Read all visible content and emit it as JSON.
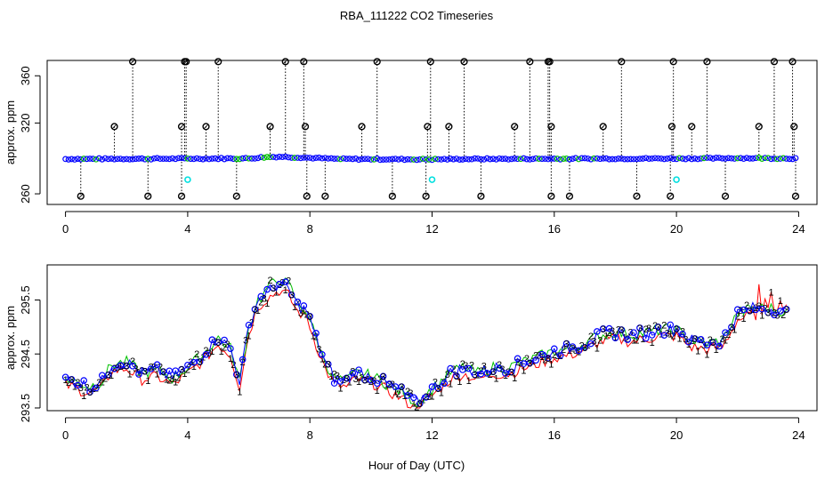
{
  "title": "RBA_111222  CO2 Timeseries",
  "xlabel": "Hour of Day (UTC)",
  "colors": {
    "black": "#000000",
    "blue": "#0000ff",
    "green": "#00c000",
    "red": "#ff0000",
    "cyan": "#00e0e0"
  },
  "chart_data": [
    {
      "type": "scatter",
      "ylabel": "approx. ppm",
      "xlim": [
        -0.6,
        24.6
      ],
      "ylim": [
        251,
        373
      ],
      "xticks": [
        0,
        4,
        8,
        12,
        16,
        20,
        24
      ],
      "yticks": [
        260,
        320,
        360
      ],
      "xticklabels": [
        "0",
        "4",
        "8",
        "12",
        "16",
        "20",
        "24"
      ],
      "yticklabels": [
        "260",
        "320",
        "360"
      ],
      "baseline": [
        [
          0,
          289.5
        ],
        [
          6,
          290
        ],
        [
          6.5,
          291
        ],
        [
          7,
          291.5
        ],
        [
          8,
          290.5
        ],
        [
          9,
          289.5
        ],
        [
          12,
          289.2
        ],
        [
          13,
          289.5
        ],
        [
          17,
          289.8
        ],
        [
          21,
          290
        ],
        [
          22,
          290.3
        ],
        [
          24,
          290
        ]
      ],
      "spikes_high": [
        2.2,
        3.9,
        3.95,
        5.0,
        7.2,
        7.8,
        10.2,
        11.95,
        13.05,
        15.2,
        15.8,
        15.85,
        18.2,
        19.9,
        21.0,
        23.2,
        23.8
      ],
      "spikes_mid": [
        1.6,
        3.8,
        4.6,
        6.7,
        7.85,
        9.7,
        11.85,
        12.55,
        14.7,
        15.9,
        17.6,
        19.85,
        20.5,
        22.7,
        23.85
      ],
      "spikes_low": [
        0.5,
        2.7,
        3.8,
        5.6,
        7.9,
        8.5,
        10.7,
        11.8,
        13.6,
        15.9,
        16.5,
        18.7,
        19.8,
        21.6,
        23.9
      ],
      "cyan_points": [
        [
          4.0,
          272
        ],
        [
          12.0,
          272
        ],
        [
          20.0,
          272
        ]
      ],
      "high_value": 372,
      "mid_value": 317,
      "low_value": 258
    },
    {
      "type": "line",
      "ylabel": "approx. ppm",
      "xlim": [
        -0.6,
        24.6
      ],
      "ylim": [
        293.45,
        296.15
      ],
      "xticks": [
        0,
        4,
        8,
        12,
        16,
        20,
        24
      ],
      "yticks": [
        293.5,
        294.5,
        295.5
      ],
      "xticklabels": [
        "0",
        "4",
        "8",
        "12",
        "16",
        "20",
        "24"
      ],
      "yticklabels": [
        "293.5",
        "294.5",
        "295.5"
      ],
      "trend": [
        [
          0,
          294.05
        ],
        [
          0.5,
          293.95
        ],
        [
          0.8,
          293.9
        ],
        [
          1.2,
          294.0
        ],
        [
          1.5,
          294.3
        ],
        [
          2.0,
          294.35
        ],
        [
          2.5,
          294.15
        ],
        [
          3.0,
          294.2
        ],
        [
          3.5,
          294.05
        ],
        [
          4.0,
          294.25
        ],
        [
          4.5,
          294.5
        ],
        [
          5.0,
          294.8
        ],
        [
          5.4,
          294.6
        ],
        [
          5.7,
          294.0
        ],
        [
          6.0,
          295.0
        ],
        [
          6.3,
          295.5
        ],
        [
          6.6,
          295.65
        ],
        [
          7.0,
          295.8
        ],
        [
          7.3,
          295.7
        ],
        [
          7.6,
          295.4
        ],
        [
          7.9,
          295.3
        ],
        [
          8.2,
          294.8
        ],
        [
          8.5,
          294.35
        ],
        [
          8.8,
          294.05
        ],
        [
          9.2,
          294.0
        ],
        [
          9.5,
          294.15
        ],
        [
          10.0,
          294.1
        ],
        [
          10.5,
          293.95
        ],
        [
          11.0,
          293.8
        ],
        [
          11.5,
          293.6
        ],
        [
          11.8,
          293.75
        ],
        [
          12.2,
          293.95
        ],
        [
          12.6,
          294.15
        ],
        [
          13.0,
          294.25
        ],
        [
          13.5,
          294.15
        ],
        [
          14.0,
          294.25
        ],
        [
          14.5,
          294.25
        ],
        [
          15.0,
          294.35
        ],
        [
          15.5,
          294.45
        ],
        [
          16.0,
          294.55
        ],
        [
          16.5,
          294.6
        ],
        [
          17.0,
          294.7
        ],
        [
          17.5,
          294.85
        ],
        [
          18.0,
          294.9
        ],
        [
          18.5,
          294.85
        ],
        [
          19.0,
          294.9
        ],
        [
          19.5,
          294.95
        ],
        [
          20.0,
          294.95
        ],
        [
          20.5,
          294.75
        ],
        [
          21.0,
          294.7
        ],
        [
          21.5,
          294.75
        ],
        [
          22.0,
          295.25
        ],
        [
          22.5,
          295.35
        ],
        [
          23.0,
          295.35
        ],
        [
          23.5,
          295.3
        ],
        [
          23.7,
          295.2
        ]
      ],
      "series": [
        {
          "symbol": "1",
          "color": "red"
        },
        {
          "symbol": "2",
          "color": "green"
        },
        {
          "symbol": "3",
          "color": "blue"
        }
      ]
    }
  ]
}
